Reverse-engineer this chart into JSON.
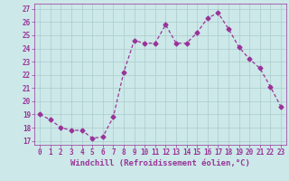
{
  "x": [
    0,
    1,
    2,
    3,
    4,
    5,
    6,
    7,
    8,
    9,
    10,
    11,
    12,
    13,
    14,
    15,
    16,
    17,
    18,
    19,
    20,
    21,
    22,
    23
  ],
  "y": [
    19.0,
    18.6,
    18.0,
    17.8,
    17.8,
    17.2,
    17.3,
    18.8,
    22.2,
    24.6,
    24.4,
    24.4,
    25.8,
    24.4,
    24.4,
    25.2,
    26.3,
    26.7,
    25.5,
    24.1,
    23.2,
    22.5,
    21.1,
    19.6
  ],
  "line_color": "#993399",
  "marker": "D",
  "markersize": 2.5,
  "linewidth": 0.9,
  "bg_color": "#cce8e8",
  "grid_color": "#aacccc",
  "xlabel": "Windchill (Refroidissement éolien,°C)",
  "xlabel_fontsize": 6.5,
  "xtick_labels": [
    "0",
    "1",
    "2",
    "3",
    "4",
    "5",
    "6",
    "7",
    "8",
    "9",
    "10",
    "11",
    "12",
    "13",
    "14",
    "15",
    "16",
    "17",
    "18",
    "19",
    "20",
    "21",
    "22",
    "23"
  ],
  "ytick_min": 17,
  "ytick_max": 27,
  "ytick_step": 1,
  "ylim": [
    16.7,
    27.4
  ],
  "xlim": [
    -0.5,
    23.5
  ],
  "tick_fontsize": 5.5,
  "title": ""
}
